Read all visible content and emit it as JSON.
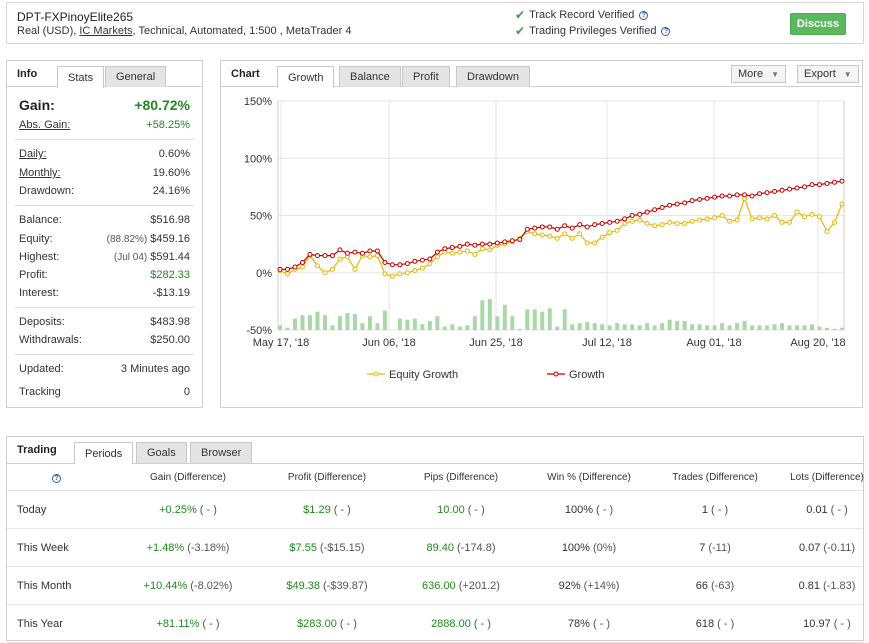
{
  "header": {
    "title": "DPT-FXPinoyElite265",
    "subtitle_prefix": "Real (USD), ",
    "broker": "IC Markets",
    "subtitle_suffix": ", Technical, Automated, 1:500 , MetaTrader 4",
    "verified": [
      "Track Record Verified",
      "Trading Privileges Verified"
    ],
    "help_glyph": "?",
    "discuss": "Discuss"
  },
  "info": {
    "head": "Info",
    "tabs": [
      "Stats",
      "General"
    ],
    "gain_label": "Gain:",
    "gain": "+80.72%",
    "abs_gain_label": "Abs. Gain:",
    "abs_gain": "+58.25%",
    "daily_label": "Daily:",
    "daily": "0.60%",
    "monthly_label": "Monthly:",
    "monthly": "19.60%",
    "drawdown_label": "Drawdown:",
    "drawdown": "24.16%",
    "balance_label": "Balance:",
    "balance": "$516.98",
    "equity_label": "Equity:",
    "equity_pct": "(88.82%)",
    "equity": "$459.16",
    "highest_label": "Highest:",
    "highest_date": "(Jul 04)",
    "highest": "$591.44",
    "profit_label": "Profit:",
    "profit": "$282.33",
    "interest_label": "Interest:",
    "interest": "-$13.19",
    "deposits_label": "Deposits:",
    "deposits": "$483.98",
    "withdrawals_label": "Withdrawals:",
    "withdrawals": "$250.00",
    "updated_label": "Updated:",
    "updated": "3 Minutes ago",
    "tracking_label": "Tracking",
    "tracking": "0"
  },
  "chart": {
    "head": "Chart",
    "tabs": [
      "Growth",
      "Balance",
      "Profit",
      "Drawdown"
    ],
    "more": "More",
    "export": "Export",
    "colors": {
      "equity": "#e6b800",
      "growth": "#c00000",
      "volume": "#a8d8a8",
      "grid": "#e6e6e6"
    }
  },
  "chart_data": {
    "type": "line",
    "ylim": [
      -50,
      150
    ],
    "yticks": [
      "150%",
      "100%",
      "50%",
      "0%",
      "-50%"
    ],
    "xticks": [
      "May 17, '18",
      "Jun 06, '18",
      "Jun 25, '18",
      "Jul 12, '18",
      "Aug 01, '18",
      "Aug 20, '18"
    ],
    "legend": [
      "Equity Growth",
      "Growth"
    ],
    "series": [
      {
        "name": "Equity Growth",
        "values": [
          2,
          -1,
          3,
          5,
          15,
          6,
          0,
          3,
          12,
          14,
          3,
          15,
          14,
          15,
          -1,
          -3,
          -1,
          0,
          2,
          4,
          8,
          14,
          18,
          17,
          18,
          19,
          16,
          21,
          20,
          24,
          25,
          27,
          30,
          36,
          34,
          33,
          32,
          30,
          34,
          30,
          34,
          26,
          26,
          31,
          35,
          37,
          43,
          45,
          46,
          43,
          41,
          42,
          44,
          43,
          43,
          45,
          46,
          47,
          48,
          50,
          45,
          46,
          65,
          47,
          48,
          47,
          50,
          44,
          44,
          53,
          49,
          51,
          49,
          36,
          44,
          60
        ]
      },
      {
        "name": "Growth",
        "values": [
          3,
          3,
          5,
          9,
          16,
          15,
          15,
          15,
          20,
          17,
          18,
          17,
          19,
          19,
          9,
          7,
          7,
          8,
          10,
          11,
          12,
          18,
          21,
          22,
          23,
          25,
          24,
          25,
          25,
          26,
          27,
          28,
          29,
          38,
          39,
          40,
          40,
          38,
          41,
          39,
          42,
          40,
          42,
          43,
          44,
          45,
          47,
          50,
          51,
          53,
          55,
          57,
          59,
          60,
          61,
          63,
          64,
          65,
          66,
          67,
          67,
          68,
          68,
          67,
          69,
          70,
          71,
          72,
          73,
          74,
          75,
          77,
          77,
          78,
          79,
          80
        ]
      },
      {
        "name": "volume",
        "values": [
          4,
          2,
          10,
          13,
          13,
          16,
          13,
          4,
          12,
          15,
          14,
          6,
          12,
          6,
          17,
          0,
          10,
          9,
          10,
          5,
          8,
          12,
          3,
          5,
          3,
          4,
          12,
          26,
          27,
          12,
          22,
          12,
          1,
          18,
          18,
          16,
          19,
          3,
          18,
          5,
          6,
          7,
          6,
          5,
          4,
          6,
          5,
          5,
          4,
          6,
          4,
          6,
          9,
          8,
          8,
          5,
          5,
          4,
          4,
          6,
          4,
          6,
          8,
          4,
          4,
          4,
          5,
          6,
          4,
          4,
          4,
          5,
          3,
          2,
          1,
          2
        ]
      }
    ]
  },
  "trading": {
    "head": "Trading",
    "tabs": [
      "Periods",
      "Goals",
      "Browser"
    ],
    "columns": [
      "Gain (Difference)",
      "Profit (Difference)",
      "Pips (Difference)",
      "Win % (Difference)",
      "Trades (Difference)",
      "Lots (Difference)"
    ],
    "rows": [
      {
        "period": "Today",
        "gain": "+0.25%",
        "gain_d": "( - )",
        "profit": "$1.29",
        "profit_d": "( - )",
        "pips": "10.00",
        "pips_d": "( - )",
        "win": "100%",
        "win_d": "( - )",
        "trades": "1",
        "trades_d": "( - )",
        "lots": "0.01",
        "lots_d": "( - )"
      },
      {
        "period": "This Week",
        "gain": "+1.48%",
        "gain_d": "(-3.18%)",
        "profit": "$7.55",
        "profit_d": "(-$15.15)",
        "pips": "89.40",
        "pips_d": "(-174.8)",
        "win": "100%",
        "win_d": "(0%)",
        "trades": "7",
        "trades_d": "(-11)",
        "lots": "0.07",
        "lots_d": "(-0.11)"
      },
      {
        "period": "This Month",
        "gain": "+10.44%",
        "gain_d": "(-8.02%)",
        "profit": "$49.38",
        "profit_d": "(-$39.87)",
        "pips": "636.00",
        "pips_d": "(+201.2)",
        "win": "92%",
        "win_d": "(+14%)",
        "trades": "66",
        "trades_d": "(-63)",
        "lots": "0.81",
        "lots_d": "(-1.83)"
      },
      {
        "period": "This Year",
        "gain": "+81.11%",
        "gain_d": "( - )",
        "profit": "$283.00",
        "profit_d": "( - )",
        "pips": "2888.00",
        "pips_d": "( - )",
        "win": "78%",
        "win_d": "( - )",
        "trades": "618",
        "trades_d": "( - )",
        "lots": "10.97",
        "lots_d": "( - )"
      }
    ]
  }
}
